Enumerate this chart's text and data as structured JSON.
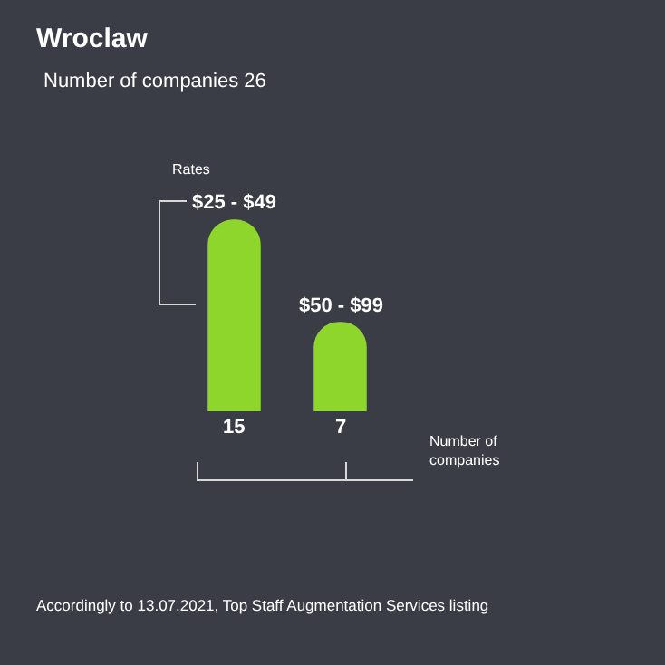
{
  "chart_data": {
    "type": "bar",
    "title": "Wroclaw",
    "subtitle": "Number of companies 26",
    "categories": [
      "$25 - $49",
      "$50 - $99"
    ],
    "values": [
      15,
      7
    ],
    "data_labels": true,
    "color": "#8fd62c",
    "tick_labels": false,
    "annotations": [
      "Rates",
      "Number of companies",
      "Accordingly to 13.07.2021, Top Staff Augmentation Services listing"
    ]
  }
}
